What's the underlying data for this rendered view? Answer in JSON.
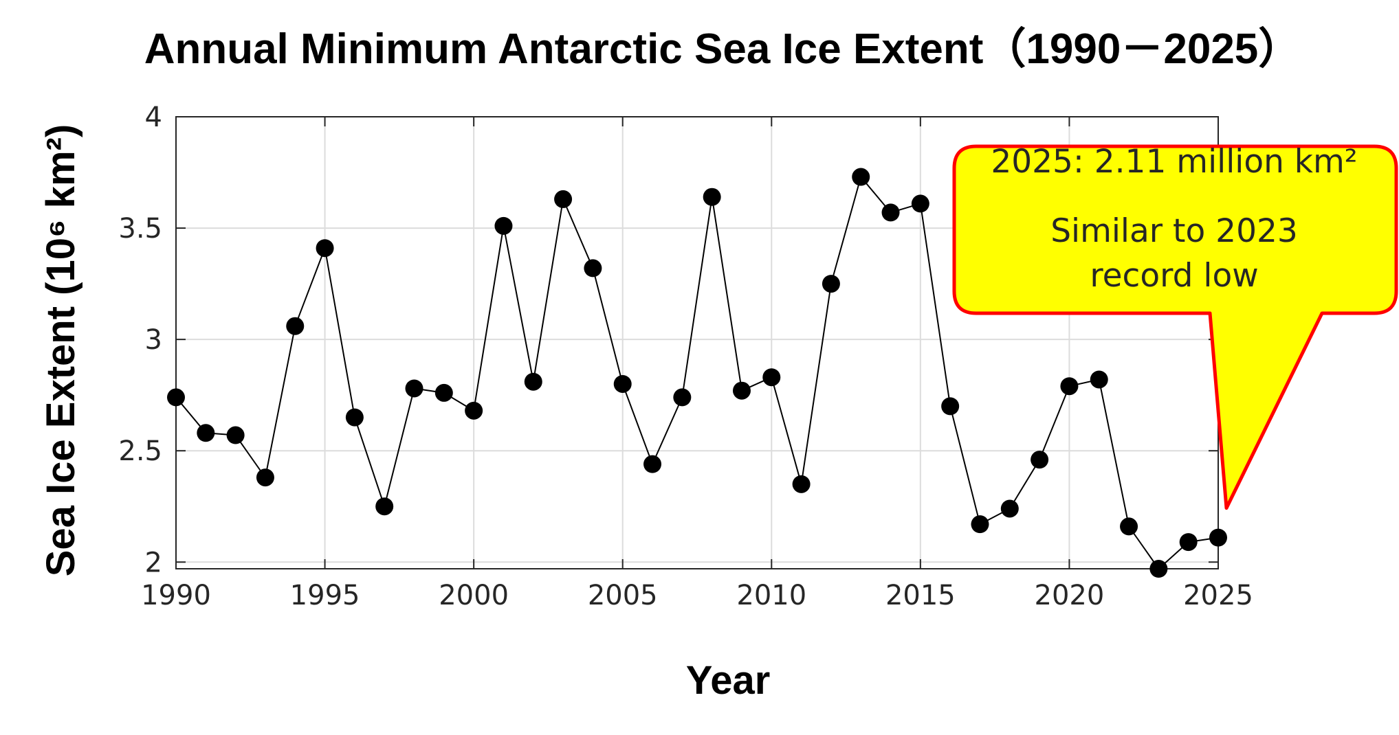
{
  "chart_data": {
    "type": "line",
    "title": "Annual Minimum Antarctic Sea Ice Extent（1990－2025）",
    "xlabel": "Year",
    "ylabel": "Sea Ice Extent (10⁶ km²)",
    "xlim": [
      1990,
      2025
    ],
    "ylim": [
      1.97,
      4
    ],
    "xticks": [
      1990,
      1995,
      2000,
      2005,
      2010,
      2015,
      2020,
      2025
    ],
    "yticks": [
      2,
      2.5,
      3,
      3.5,
      4
    ],
    "ytick_labels": [
      "2",
      "2.5",
      "3",
      "3.5",
      "4"
    ],
    "grid": true,
    "legend": "none",
    "series": [
      {
        "x": [
          1990,
          1991,
          1992,
          1993,
          1994,
          1995,
          1996,
          1997,
          1998,
          1999,
          2000,
          2001,
          2002,
          2003,
          2004,
          2005,
          2006,
          2007,
          2008,
          2009,
          2010,
          2011,
          2012,
          2013,
          2014,
          2015,
          2016,
          2017,
          2018,
          2019,
          2020,
          2021,
          2022,
          2023,
          2024,
          2025
        ],
        "values": [
          2.74,
          2.58,
          2.57,
          2.38,
          3.06,
          3.41,
          2.65,
          2.25,
          2.78,
          2.76,
          2.68,
          3.51,
          2.81,
          3.63,
          3.32,
          2.8,
          2.44,
          2.74,
          3.64,
          2.77,
          2.83,
          2.35,
          3.25,
          3.73,
          3.57,
          3.61,
          2.7,
          2.17,
          2.24,
          2.46,
          2.79,
          2.82,
          2.16,
          1.97,
          2.09,
          2.11
        ],
        "color": "#000000"
      }
    ],
    "annotation": {
      "lines": [
        "2025: 2.11 million km²",
        "Similar to 2023",
        "record low"
      ],
      "fill": "#ffff00",
      "border": "#ff0000",
      "points_to_year": 2025
    }
  }
}
